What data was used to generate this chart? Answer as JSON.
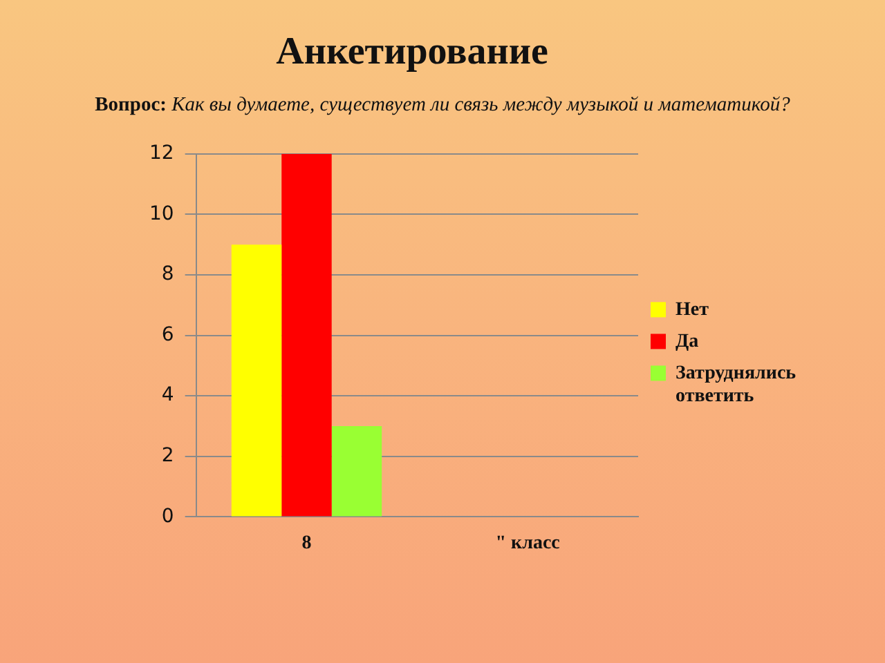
{
  "chart_data": {
    "type": "bar",
    "title": "Анкетирование",
    "subtitle": "Вопрос: Как вы думаете, существует ли связь между музыкой и математикой?",
    "categories": [
      "8",
      "\" класс"
    ],
    "series": [
      {
        "name": "Нет",
        "color": "#ffff00",
        "values": [
          9,
          null
        ]
      },
      {
        "name": "Да",
        "color": "#ff0000",
        "values": [
          12,
          null
        ]
      },
      {
        "name": "Затруднялись ответить",
        "color": "#99ff33",
        "values": [
          3,
          null
        ]
      }
    ],
    "ylim": [
      0,
      12
    ],
    "yticks": [
      0,
      2,
      4,
      6,
      8,
      10,
      12
    ],
    "grid": "y",
    "legend": "right"
  }
}
